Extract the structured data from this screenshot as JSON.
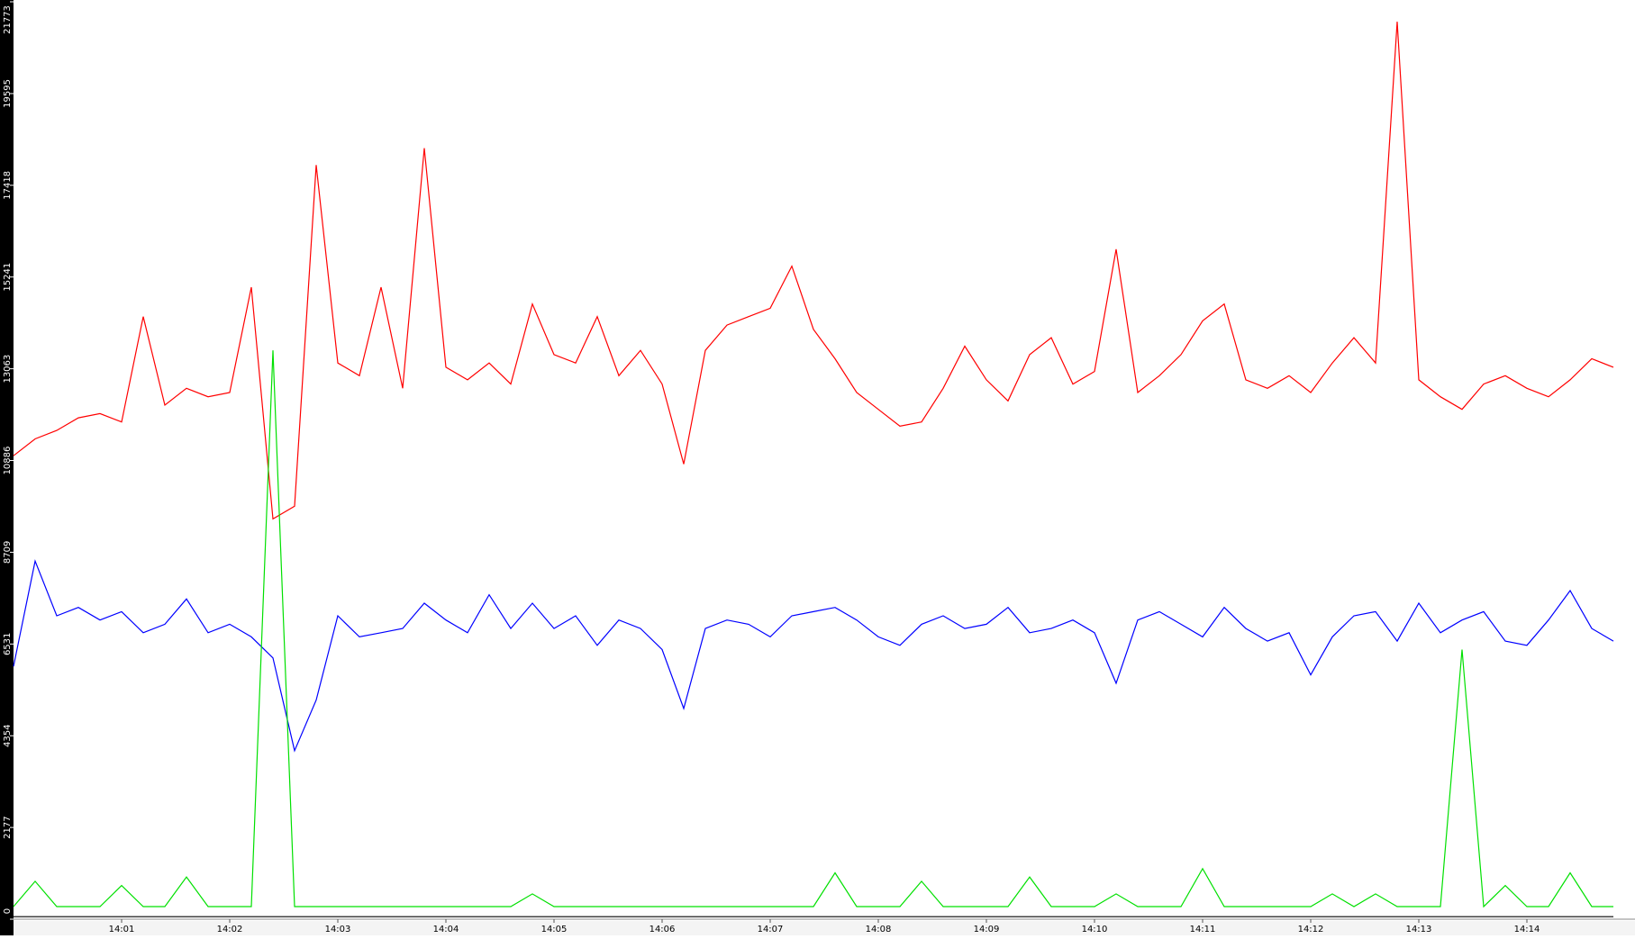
{
  "chart_data": {
    "type": "line",
    "x": [
      0,
      0.2,
      0.4,
      0.6,
      0.8,
      1,
      1.2,
      1.4,
      1.6,
      1.8,
      2,
      2.2,
      2.4,
      2.6,
      2.8,
      3,
      3.2,
      3.4,
      3.6,
      3.8,
      4,
      4.2,
      4.4,
      4.6,
      4.8,
      5,
      5.2,
      5.4,
      5.6,
      5.8,
      6,
      6.2,
      6.4,
      6.6,
      6.8,
      7,
      7.2,
      7.4,
      7.6,
      7.8,
      8,
      8.2,
      8.4,
      8.6,
      8.8,
      9,
      9.2,
      9.4,
      9.6,
      9.8,
      10,
      10.2,
      10.4,
      10.6,
      10.8,
      11,
      11.2,
      11.4,
      11.6,
      11.8,
      12,
      12.2,
      12.4,
      12.6,
      12.8,
      13,
      13.2,
      13.4,
      13.6,
      13.8,
      14,
      14.2,
      14.4,
      14.6,
      14.8
    ],
    "xlim": [
      0,
      15
    ],
    "xticks": [
      {
        "value": 1,
        "label": "14:01"
      },
      {
        "value": 2,
        "label": "14:02"
      },
      {
        "value": 3,
        "label": "14:03"
      },
      {
        "value": 4,
        "label": "14:04"
      },
      {
        "value": 5,
        "label": "14:05"
      },
      {
        "value": 6,
        "label": "14:06"
      },
      {
        "value": 7,
        "label": "14:07"
      },
      {
        "value": 8,
        "label": "14:08"
      },
      {
        "value": 9,
        "label": "14:09"
      },
      {
        "value": 10,
        "label": "14:10"
      },
      {
        "value": 11,
        "label": "14:11"
      },
      {
        "value": 12,
        "label": "14:12"
      },
      {
        "value": 13,
        "label": "14:13"
      },
      {
        "value": 14,
        "label": "14:14"
      }
    ],
    "ylim": [
      0,
      21773
    ],
    "yticks": [
      0,
      2177,
      4354,
      6531,
      8709,
      10886,
      13063,
      15241,
      17418,
      19595,
      21773
    ],
    "series": [
      {
        "color": "#ff0000",
        "values": [
          11000,
          11400,
          11600,
          11900,
          12000,
          11800,
          14300,
          12200,
          12600,
          12400,
          12500,
          15000,
          9500,
          9800,
          17900,
          13200,
          12900,
          15000,
          12600,
          18300,
          13100,
          12800,
          13200,
          12700,
          14600,
          13400,
          13200,
          14300,
          12900,
          13500,
          12700,
          10800,
          13500,
          14100,
          14300,
          14500,
          15500,
          14000,
          13300,
          12500,
          12100,
          11700,
          11800,
          12600,
          13600,
          12800,
          12300,
          13400,
          13800,
          12700,
          13000,
          15900,
          12500,
          12900,
          13400,
          14200,
          14600,
          12800,
          12600,
          12900,
          12500,
          13200,
          13800,
          13200,
          21300,
          12800,
          12400,
          12100,
          12700,
          12900,
          12600,
          12400,
          12800,
          13300,
          13100
        ]
      },
      {
        "color": "#0000ff",
        "values": [
          6000,
          8500,
          7200,
          7400,
          7100,
          7300,
          6800,
          7000,
          7600,
          6800,
          7000,
          6700,
          6200,
          4000,
          5200,
          7200,
          6700,
          6800,
          6900,
          7500,
          7100,
          6800,
          7700,
          6900,
          7500,
          6900,
          7200,
          6500,
          7100,
          6900,
          6400,
          5000,
          6900,
          7100,
          7000,
          6700,
          7200,
          7300,
          7400,
          7100,
          6700,
          6500,
          7000,
          7200,
          6900,
          7000,
          7400,
          6800,
          6900,
          7100,
          6800,
          5600,
          7100,
          7300,
          7000,
          6700,
          7400,
          6900,
          6600,
          6800,
          5800,
          6700,
          7200,
          7300,
          6600,
          7500,
          6800,
          7100,
          7300,
          6600,
          6500,
          7100,
          7800,
          6900,
          6600
        ]
      },
      {
        "color": "#00e000",
        "values": [
          300,
          900,
          300,
          300,
          300,
          800,
          300,
          300,
          1000,
          300,
          300,
          300,
          13500,
          300,
          300,
          300,
          300,
          300,
          300,
          300,
          300,
          300,
          300,
          300,
          600,
          300,
          300,
          300,
          300,
          300,
          300,
          300,
          300,
          300,
          300,
          300,
          300,
          300,
          1100,
          300,
          300,
          300,
          900,
          300,
          300,
          300,
          300,
          1000,
          300,
          300,
          300,
          600,
          300,
          300,
          300,
          1200,
          300,
          300,
          300,
          300,
          300,
          600,
          300,
          600,
          300,
          300,
          300,
          6400,
          300,
          800,
          300,
          300,
          1100,
          300,
          300
        ]
      },
      {
        "color": "#000000",
        "values": [
          60,
          60,
          60,
          60,
          60,
          60,
          60,
          60,
          60,
          60,
          60,
          60,
          60,
          60,
          60,
          60,
          60,
          60,
          60,
          60,
          60,
          60,
          60,
          60,
          60,
          60,
          60,
          60,
          60,
          60,
          60,
          60,
          60,
          60,
          60,
          60,
          60,
          60,
          60,
          60,
          60,
          60,
          60,
          60,
          60,
          60,
          60,
          60,
          60,
          60,
          60,
          60,
          60,
          60,
          60,
          60,
          60,
          60,
          60,
          60,
          60,
          60,
          60,
          60,
          60,
          60,
          60,
          60,
          60,
          60,
          60,
          60,
          60,
          60,
          60
        ]
      }
    ]
  }
}
